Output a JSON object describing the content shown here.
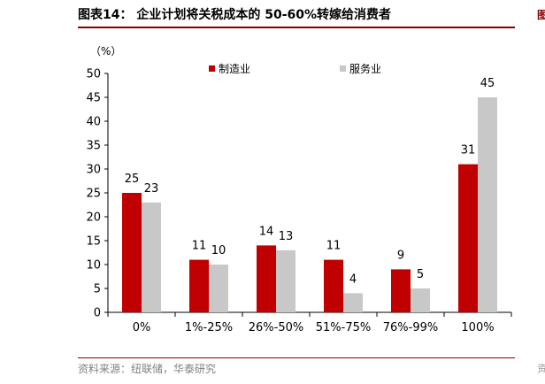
{
  "figure": {
    "title": "图表14：  企业计划将关税成本的 50-60%转嫁给消费者",
    "source": "资料来源：纽联储，华泰研究",
    "edge_top": "图",
    "edge_bottom": "资"
  },
  "chart_data": {
    "type": "bar",
    "categories": [
      "0%",
      "1%-25%",
      "26%-50%",
      "51%-75%",
      "76%-99%",
      "100%"
    ],
    "series": [
      {
        "name": "制造业",
        "values": [
          25,
          11,
          14,
          11,
          9,
          31
        ],
        "color": "#c00000"
      },
      {
        "name": "服务业",
        "values": [
          23,
          10,
          13,
          4,
          5,
          45
        ],
        "color": "#c8c8c8"
      }
    ],
    "ylabel": "（%）",
    "ylim": [
      0,
      50
    ],
    "yticks": [
      0,
      5,
      10,
      15,
      20,
      25,
      30,
      35,
      40,
      45,
      50
    ],
    "grid": false,
    "legend_position": "top-center",
    "data_labels": true
  }
}
